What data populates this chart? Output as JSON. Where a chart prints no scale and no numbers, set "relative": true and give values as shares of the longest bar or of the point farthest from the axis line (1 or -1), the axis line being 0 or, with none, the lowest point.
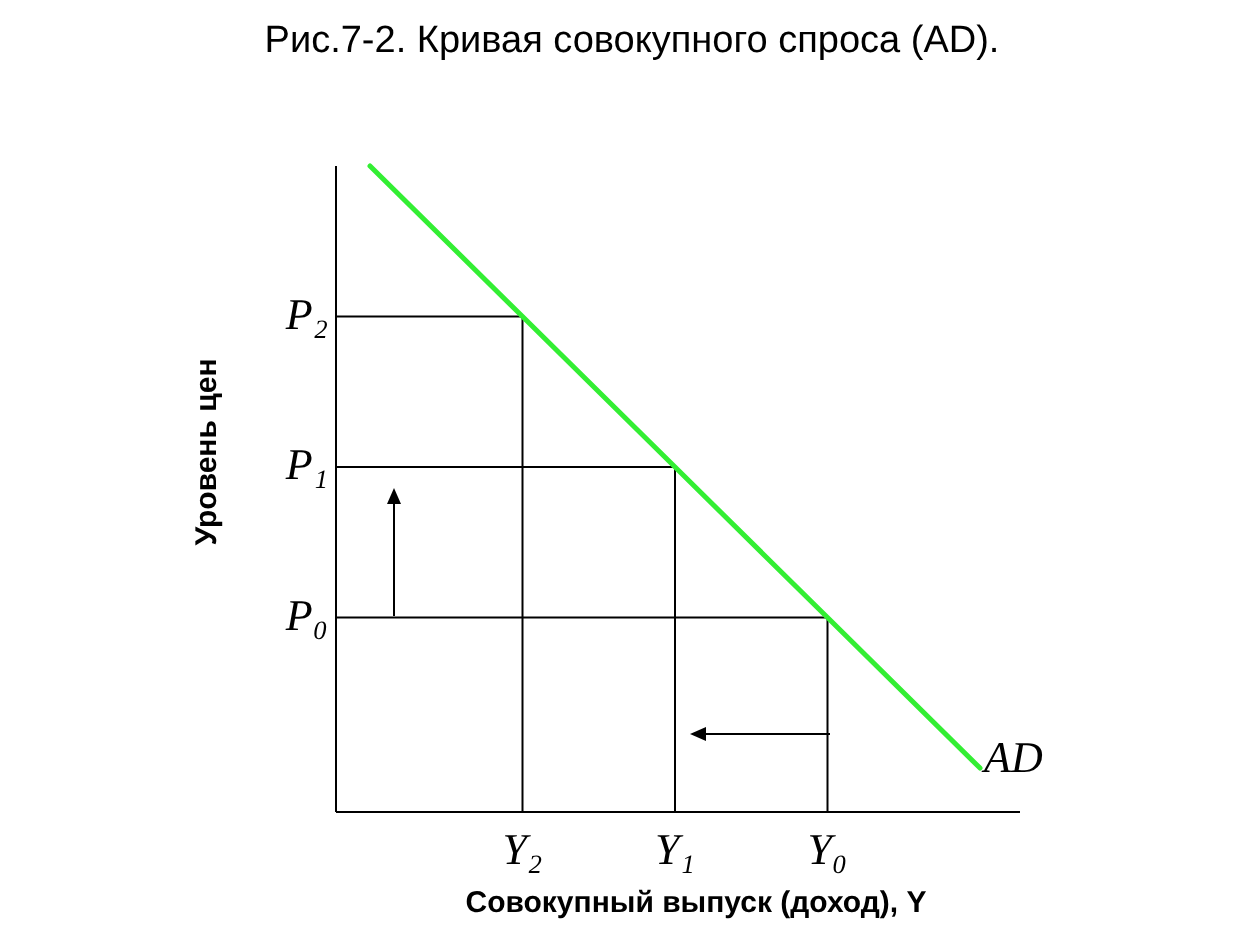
{
  "chart_data": {
    "type": "line",
    "title": "Рис.7-2. Кривая совокупного спроса (AD).",
    "xlabel": "Совокупный выпуск (доход), Y",
    "ylabel": "Уровень цен",
    "relative": true,
    "categories": [
      null,
      "Y₂",
      "Y₁",
      "Y₀",
      null
    ],
    "series": [
      {
        "name": "AD",
        "color": "#33ee33",
        "values": [
          1,
          0.767,
          0.534,
          0.301,
          0.068
        ]
      }
    ],
    "annotations": [
      {
        "text": "P₂",
        "x": "Y₂",
        "y": 0.767
      },
      {
        "text": "P₁",
        "x": "Y₁",
        "y": 0.534
      },
      {
        "text": "P₀",
        "x": "Y₀",
        "y": 0.301
      }
    ]
  }
}
